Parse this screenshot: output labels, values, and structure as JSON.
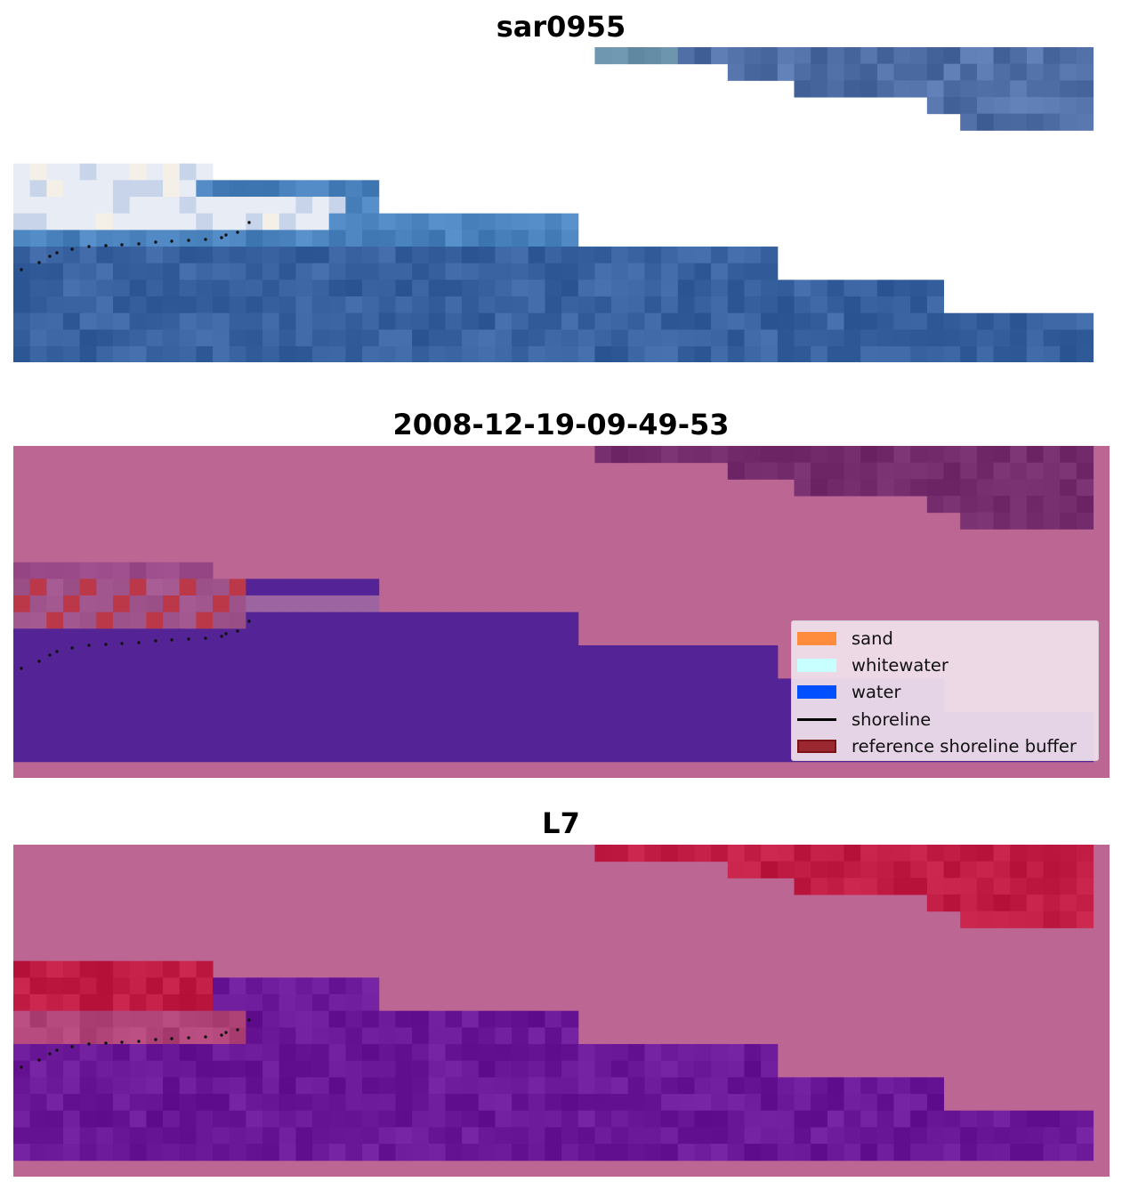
{
  "chart_data": [
    {
      "type": "heatmap",
      "title": "sar0955",
      "description_layer": "rgb",
      "has_shoreline_points": true
    },
    {
      "type": "heatmap",
      "title": "2008-12-19-09-49-53",
      "description_layer": "classified",
      "has_shoreline_points": true,
      "legend": {
        "placement": "lower-right",
        "entries": [
          {
            "label": "sand",
            "kind": "patch",
            "color": "#ff8c3c"
          },
          {
            "label": "whitewater",
            "kind": "patch",
            "color": "#c8ffff"
          },
          {
            "label": "water",
            "kind": "patch",
            "color": "#0050ff"
          },
          {
            "label": "shoreline",
            "kind": "line",
            "color": "#000000"
          },
          {
            "label": "reference shoreline buffer",
            "kind": "patch",
            "color": "#9b2830",
            "edge": "#7a1218"
          }
        ]
      }
    },
    {
      "type": "heatmap",
      "title": "L7",
      "description_layer": "index",
      "has_shoreline_points": true
    }
  ],
  "colors": {
    "background": "#ffffff",
    "mask": "#bc6694",
    "water_class": "#542497",
    "buffer_class": "#bb3848",
    "land_dark": "#742c6c"
  }
}
